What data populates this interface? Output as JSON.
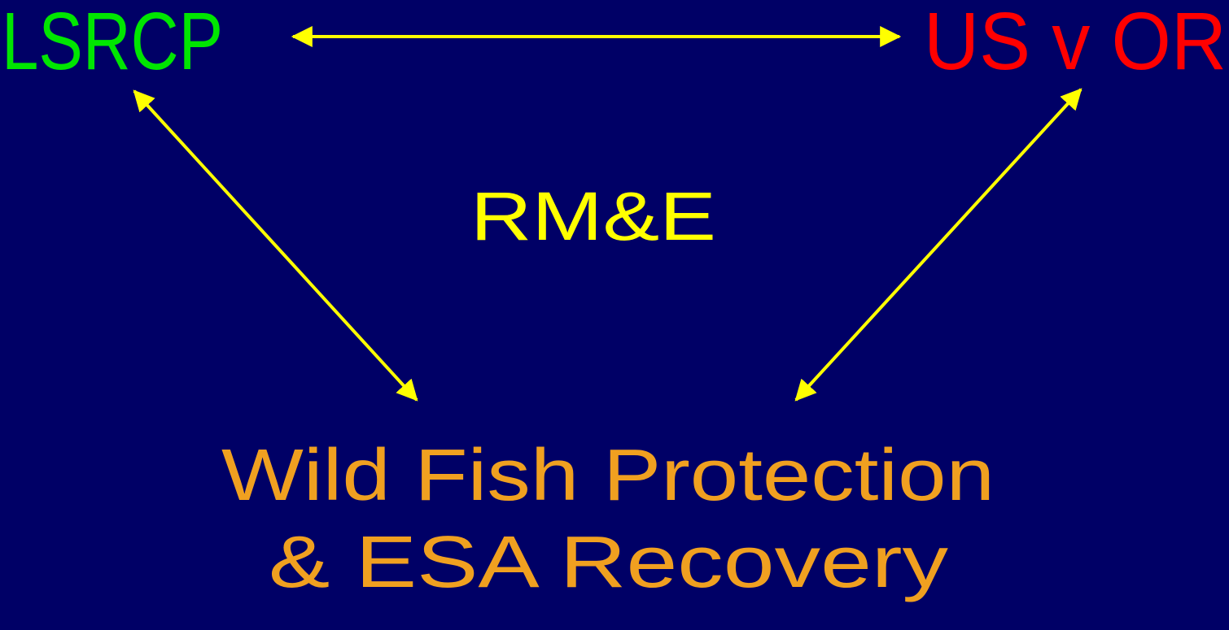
{
  "nodes": [
    {
      "label": "LSRCP"
    },
    {
      "label": "US v OR"
    },
    {
      "label": "RM&E"
    },
    {
      "lines": [
        "Wild Fish Protection",
        "& ESA Recovery"
      ]
    }
  ]
}
